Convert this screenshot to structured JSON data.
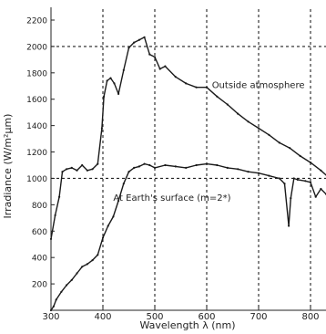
{
  "chart_data": {
    "type": "line",
    "title": "",
    "xlabel": "Wavelength λ (nm)",
    "ylabel": "Irradiance (W/m²µm)",
    "xlim": [
      300,
      840
    ],
    "ylim": [
      0,
      2300
    ],
    "x_ticks": [
      "300",
      "400",
      "500",
      "600",
      "700",
      "800"
    ],
    "y_ticks": [
      "200",
      "400",
      "600",
      "800",
      "1000",
      "1200",
      "1400",
      "1600",
      "1800",
      "2000",
      "2200"
    ],
    "x_tick_values": [
      300,
      400,
      500,
      600,
      700,
      800
    ],
    "y_tick_values": [
      200,
      400,
      600,
      800,
      1000,
      1200,
      1400,
      1600,
      1800,
      2000,
      2200
    ],
    "vertical_reference_lines": [
      400,
      500,
      600,
      700,
      800
    ],
    "horizontal_reference_lines": [
      1000,
      2000
    ],
    "grid": false,
    "annotations": [
      {
        "text": "Outside atmosphere",
        "x": 610,
        "y": 1685
      },
      {
        "text": "At Earth's surface (m=2*)",
        "x": 420,
        "y": 830
      }
    ],
    "series": [
      {
        "name": "Outside atmosphere",
        "x": [
          300,
          308,
          316,
          322,
          330,
          340,
          350,
          360,
          370,
          380,
          390,
          398,
          402,
          408,
          415,
          422,
          430,
          440,
          450,
          460,
          470,
          480,
          490,
          500,
          510,
          520,
          540,
          560,
          580,
          600,
          620,
          640,
          660,
          680,
          700,
          720,
          740,
          760,
          780,
          800,
          820,
          840
        ],
        "y": [
          540,
          720,
          860,
          1050,
          1070,
          1080,
          1060,
          1100,
          1060,
          1070,
          1110,
          1380,
          1620,
          1740,
          1760,
          1720,
          1640,
          1820,
          1990,
          2030,
          2050,
          2070,
          1940,
          1920,
          1830,
          1850,
          1770,
          1720,
          1690,
          1690,
          1620,
          1560,
          1490,
          1430,
          1380,
          1330,
          1270,
          1230,
          1170,
          1120,
          1060,
          990
        ]
      },
      {
        "name": "At Earth's surface (m=2*)",
        "x": [
          300,
          305,
          310,
          320,
          330,
          340,
          350,
          360,
          370,
          380,
          390,
          400,
          410,
          420,
          430,
          440,
          450,
          460,
          470,
          480,
          490,
          500,
          520,
          540,
          560,
          580,
          600,
          620,
          640,
          660,
          680,
          700,
          720,
          740,
          750,
          758,
          762,
          768,
          775,
          790,
          800,
          810,
          820,
          830,
          840
        ],
        "y": [
          0,
          30,
          80,
          140,
          190,
          230,
          280,
          330,
          350,
          380,
          420,
          550,
          640,
          710,
          830,
          960,
          1050,
          1080,
          1090,
          1110,
          1100,
          1080,
          1100,
          1090,
          1080,
          1100,
          1110,
          1100,
          1080,
          1070,
          1050,
          1040,
          1020,
          1000,
          960,
          640,
          850,
          1000,
          990,
          980,
          970,
          860,
          920,
          880,
          910
        ]
      }
    ]
  }
}
